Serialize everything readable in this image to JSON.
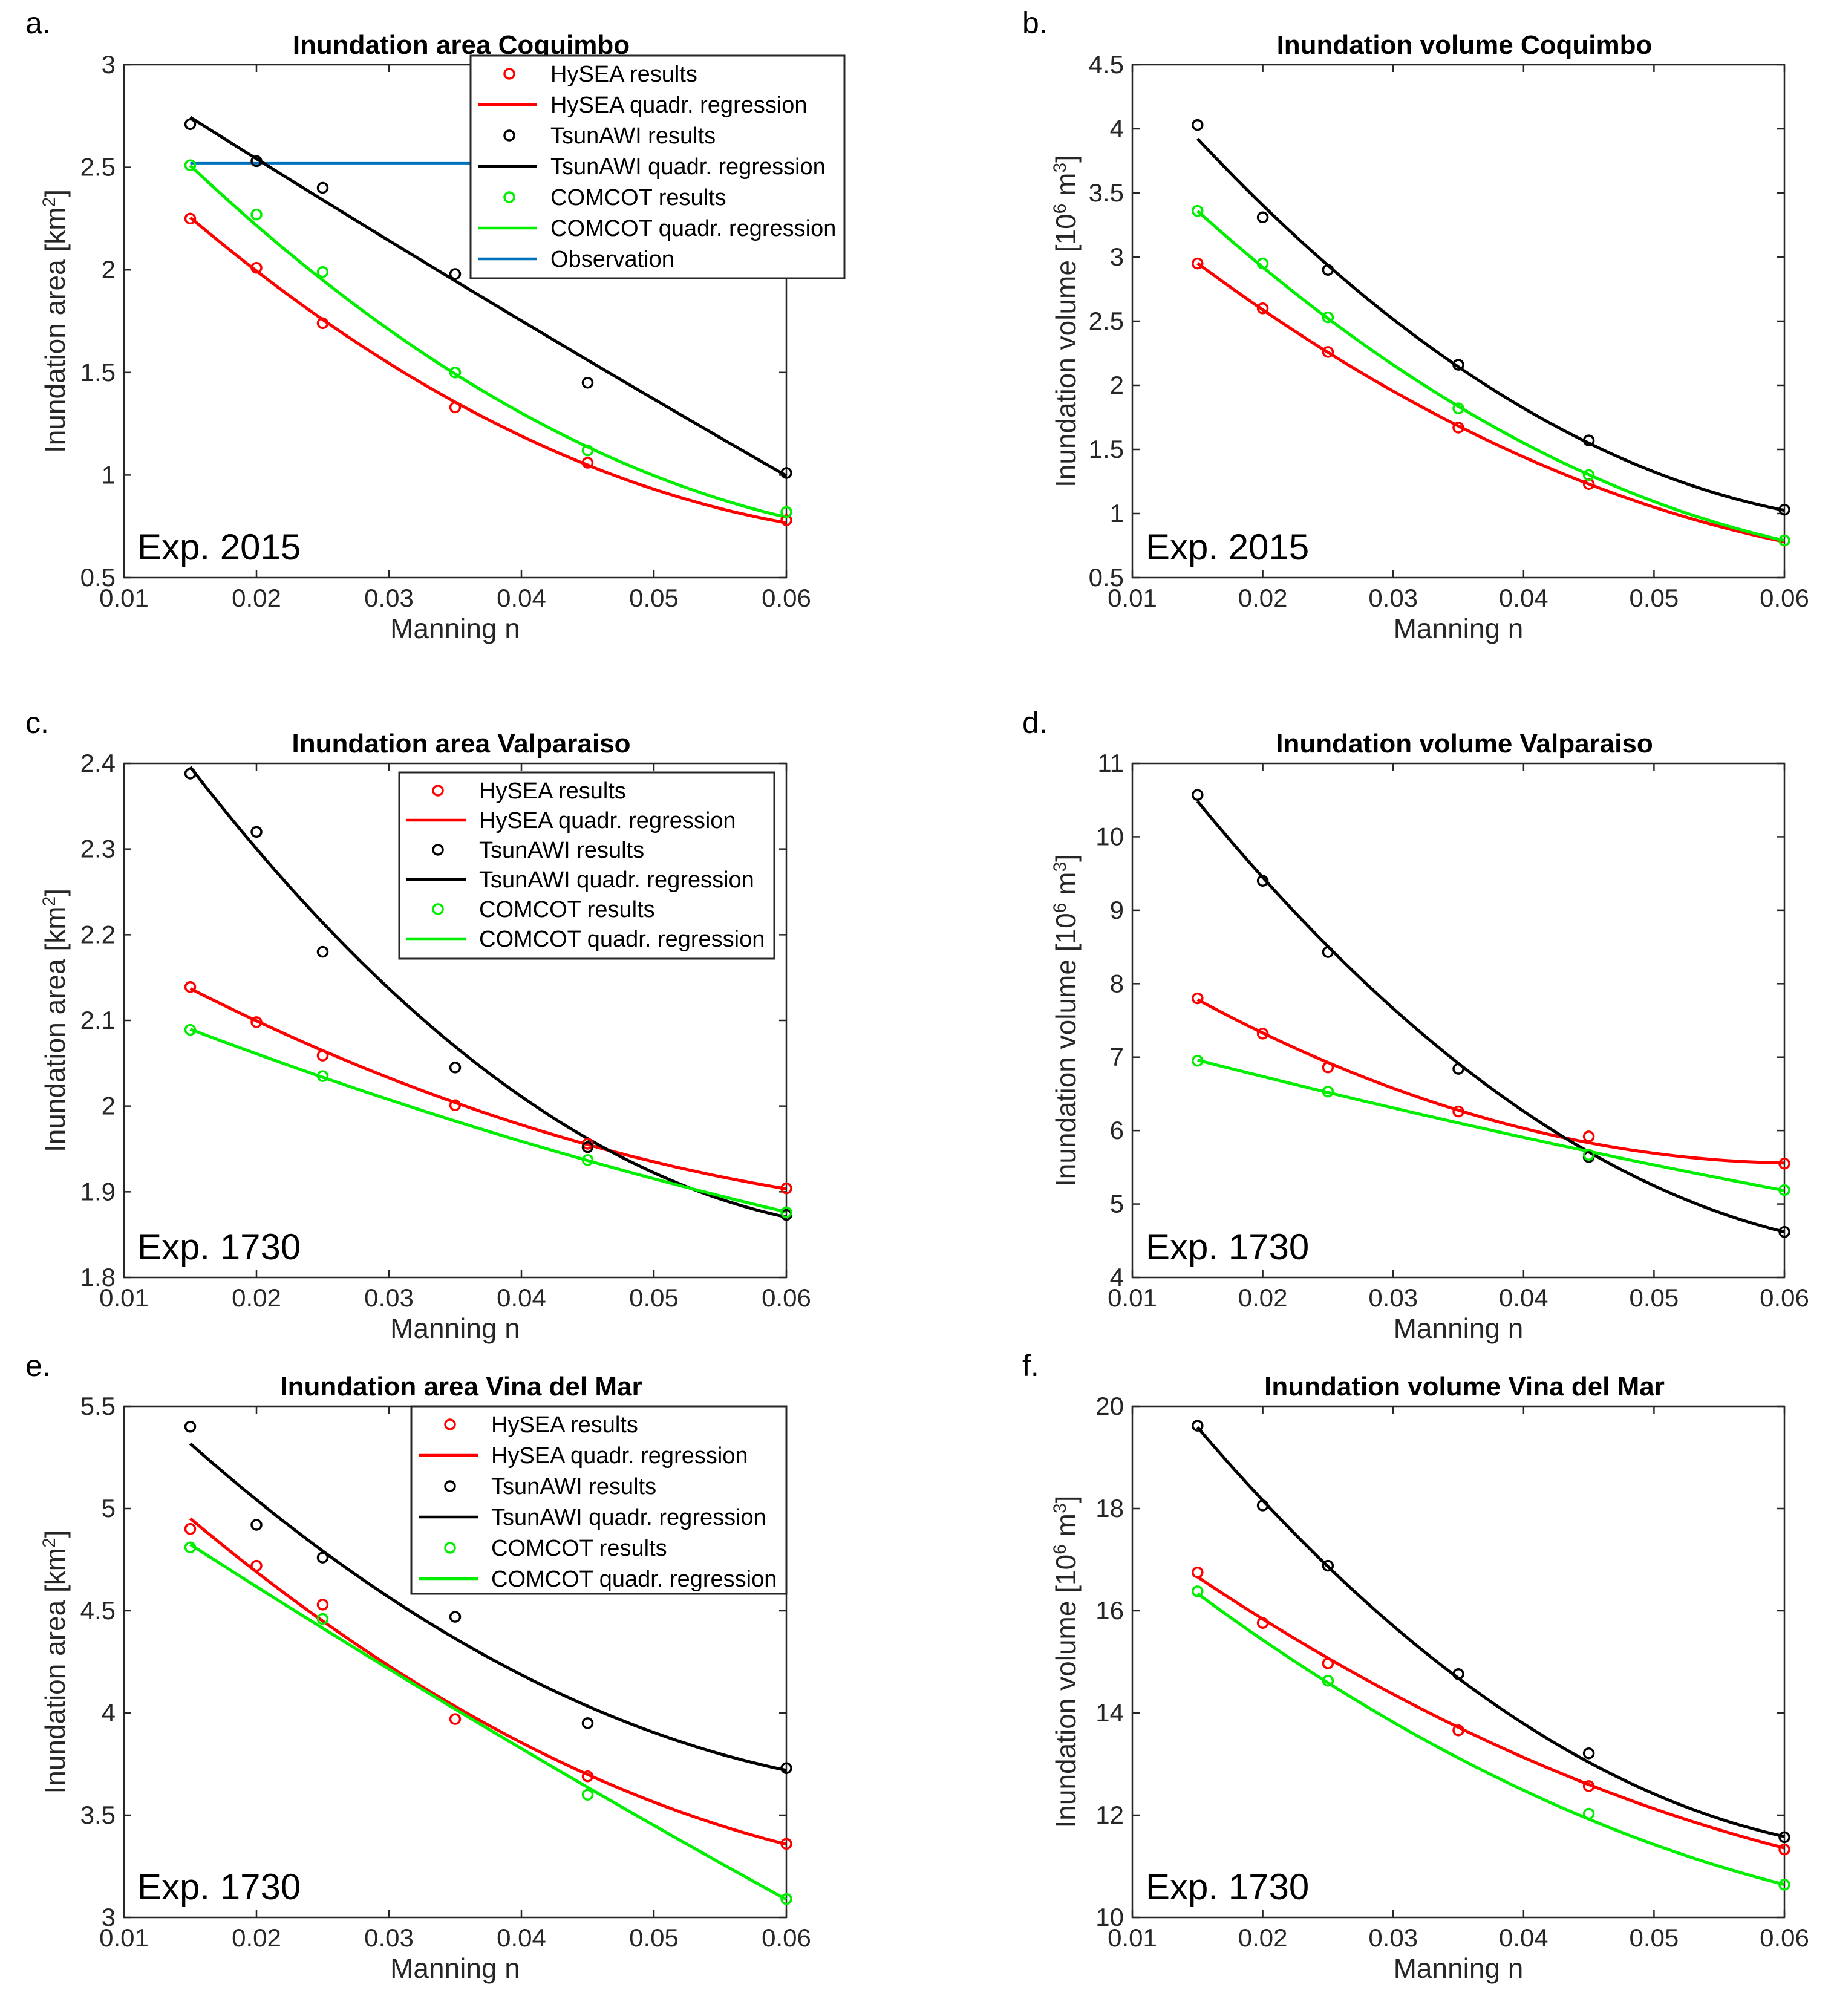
{
  "colors": {
    "hysea": "#ff0000",
    "tsunawi": "#000000",
    "comcot": "#00ee00",
    "observation": "#0072bd",
    "axis": "#262626"
  },
  "legend_labels": {
    "hysea_results": "HySEA results",
    "hysea_fit": "HySEA quadr. regression",
    "tsunawi_results": "TsunAWI results",
    "tsunawi_fit": "TsunAWI quadr. regression",
    "comcot_results": "COMCOT results",
    "comcot_fit": "COMCOT quadr. regression",
    "observation": "Observation"
  },
  "chart_data": [
    {
      "panel": "a.",
      "type": "scatter",
      "title": "Inundation area Coquimbo",
      "xlabel": "Manning n",
      "ylabel": "Inundation area [km²]",
      "xlim": [
        0.01,
        0.06
      ],
      "ylim": [
        0.5,
        3
      ],
      "xticks": [
        0.01,
        0.02,
        0.03,
        0.04,
        0.05,
        0.06
      ],
      "xtick_labels": [
        "0.01",
        "0.02",
        "0.03",
        "0.04",
        "0.05",
        "0.06"
      ],
      "yticks": [
        0.5,
        1,
        1.5,
        2,
        2.5,
        3
      ],
      "ytick_labels": [
        "0.5",
        "1",
        "1.5",
        "2",
        "2.5",
        "3"
      ],
      "annotation": "Exp. 2015",
      "legend_position": "top-right",
      "x": [
        0.015,
        0.02,
        0.025,
        0.035,
        0.045,
        0.06
      ],
      "series": [
        {
          "name": "HySEA",
          "results": [
            2.25,
            2.01,
            1.74,
            1.33,
            1.06,
            0.78
          ],
          "fit": [
            2.25,
            2.0,
            1.76,
            1.36,
            1.04,
            0.77
          ]
        },
        {
          "name": "TsunAWI",
          "results": [
            2.71,
            2.53,
            2.4,
            1.98,
            1.45,
            1.01
          ],
          "fit": [
            2.74,
            2.54,
            2.35,
            1.95,
            1.55,
            1.0
          ]
        },
        {
          "name": "COMCOT",
          "results": [
            2.51,
            2.27,
            1.99,
            1.5,
            1.12,
            0.82
          ],
          "fit": [
            2.5,
            2.22,
            1.96,
            1.5,
            1.12,
            0.8
          ]
        }
      ],
      "observation": {
        "name": "Observation",
        "value": 2.52,
        "x_range": [
          0.015,
          0.06
        ]
      }
    },
    {
      "panel": "b.",
      "type": "scatter",
      "title": "Inundation volume Coquimbo",
      "xlabel": "Manning n",
      "ylabel": "Inundation volume [10⁶ m³]",
      "xlim": [
        0.01,
        0.06
      ],
      "ylim": [
        0.5,
        4.5
      ],
      "xticks": [
        0.01,
        0.02,
        0.03,
        0.04,
        0.05,
        0.06
      ],
      "xtick_labels": [
        "0.01",
        "0.02",
        "0.03",
        "0.04",
        "0.05",
        "0.06"
      ],
      "yticks": [
        0.5,
        1,
        1.5,
        2,
        2.5,
        3,
        3.5,
        4,
        4.5
      ],
      "ytick_labels": [
        "0.5",
        "1",
        "1.5",
        "2",
        "2.5",
        "3",
        "3.5",
        "4",
        "4.5"
      ],
      "annotation": "Exp. 2015",
      "legend_position": "none",
      "x": [
        0.015,
        0.02,
        0.025,
        0.035,
        0.045,
        0.06
      ],
      "series": [
        {
          "name": "HySEA",
          "results": [
            2.95,
            2.6,
            2.26,
            1.67,
            1.23,
            0.79
          ],
          "fit": [
            2.95,
            2.59,
            2.26,
            1.68,
            1.23,
            0.78
          ]
        },
        {
          "name": "TsunAWI",
          "results": [
            4.03,
            3.31,
            2.9,
            2.16,
            1.57,
            1.03
          ],
          "fit": [
            3.94,
            3.39,
            2.92,
            2.15,
            1.56,
            1.02
          ]
        },
        {
          "name": "COMCOT",
          "results": [
            3.36,
            2.95,
            2.53,
            1.82,
            1.3,
            0.79
          ],
          "fit": [
            3.36,
            2.92,
            2.52,
            1.84,
            1.3,
            0.79
          ]
        }
      ]
    },
    {
      "panel": "c.",
      "type": "scatter",
      "title": "Inundation area Valparaiso",
      "xlabel": "Manning n",
      "ylabel": "Inundation area [km²]",
      "xlim": [
        0.01,
        0.06
      ],
      "ylim": [
        1.8,
        2.4
      ],
      "xticks": [
        0.01,
        0.02,
        0.03,
        0.04,
        0.05,
        0.06
      ],
      "xtick_labels": [
        "0.01",
        "0.02",
        "0.03",
        "0.04",
        "0.05",
        "0.06"
      ],
      "yticks": [
        1.8,
        1.9,
        2.0,
        2.1,
        2.2,
        2.3,
        2.4
      ],
      "ytick_labels": [
        "1.8",
        "1.9",
        "2",
        "2.1",
        "2.2",
        "2.3",
        "2.4"
      ],
      "annotation": "Exp. 1730",
      "legend_position": "top-right",
      "x": [
        0.015,
        0.02,
        0.025,
        0.035,
        0.045,
        0.06
      ],
      "series": [
        {
          "name": "HySEA",
          "results": [
            2.139,
            2.098,
            2.059,
            2.001,
            1.956,
            1.904
          ],
          "fit": [
            2.137,
            2.099,
            2.065,
            2.006,
            1.953,
            1.904
          ]
        },
        {
          "name": "TsunAWI",
          "results": [
            2.388,
            2.32,
            2.18,
            2.045,
            1.952,
            1.873
          ],
          "fit": [
            2.394,
            2.3,
            2.217,
            2.072,
            1.957,
            1.872
          ]
        },
        {
          "name": "COMCOT",
          "results": [
            2.089,
            null,
            2.035,
            null,
            1.937,
            1.876
          ],
          "fit": [
            2.089,
            2.061,
            2.035,
            1.983,
            1.935,
            1.877
          ]
        }
      ]
    },
    {
      "panel": "d.",
      "type": "scatter",
      "title": "Inundation volume Valparaiso",
      "xlabel": "Manning n",
      "ylabel": "Inundation volume [10⁶ m³]",
      "xlim": [
        0.01,
        0.06
      ],
      "ylim": [
        4,
        11
      ],
      "xticks": [
        0.01,
        0.02,
        0.03,
        0.04,
        0.05,
        0.06
      ],
      "xtick_labels": [
        "0.01",
        "0.02",
        "0.03",
        "0.04",
        "0.05",
        "0.06"
      ],
      "yticks": [
        4,
        5,
        6,
        7,
        8,
        9,
        10,
        11
      ],
      "ytick_labels": [
        "4",
        "5",
        "6",
        "7",
        "8",
        "9",
        "10",
        "11"
      ],
      "annotation": "Exp. 1730",
      "legend_position": "none",
      "x": [
        0.015,
        0.02,
        0.025,
        0.035,
        0.045,
        0.06
      ],
      "series": [
        {
          "name": "HySEA",
          "results": [
            7.8,
            7.32,
            6.86,
            6.26,
            5.92,
            5.55
          ],
          "fit": [
            7.8,
            7.32,
            6.91,
            6.27,
            5.86,
            5.55
          ]
        },
        {
          "name": "TsunAWI",
          "results": [
            10.57,
            9.4,
            8.43,
            6.84,
            5.64,
            4.62
          ],
          "fit": [
            10.48,
            9.45,
            8.51,
            6.91,
            5.71,
            4.62
          ]
        },
        {
          "name": "COMCOT",
          "results": [
            6.95,
            null,
            6.53,
            null,
            5.67,
            5.19
          ],
          "fit": [
            6.95,
            6.74,
            6.53,
            6.11,
            5.7,
            5.19
          ]
        }
      ]
    },
    {
      "panel": "e.",
      "type": "scatter",
      "title": "Inundation area Vina del Mar",
      "xlabel": "Manning n",
      "ylabel": "Inundation area [km²]",
      "xlim": [
        0.01,
        0.06
      ],
      "ylim": [
        3,
        5.5
      ],
      "xticks": [
        0.01,
        0.02,
        0.03,
        0.04,
        0.05,
        0.06
      ],
      "xtick_labels": [
        "0.01",
        "0.02",
        "0.03",
        "0.04",
        "0.05",
        "0.06"
      ],
      "yticks": [
        3,
        3.5,
        4,
        4.5,
        5,
        5.5
      ],
      "ytick_labels": [
        "3",
        "3.5",
        "4",
        "4.5",
        "5",
        "5.5"
      ],
      "annotation": "Exp. 1730",
      "legend_position": "top-right",
      "x": [
        0.015,
        0.02,
        0.025,
        0.035,
        0.045,
        0.06
      ],
      "series": [
        {
          "name": "HySEA",
          "results": [
            4.9,
            4.72,
            4.53,
            3.97,
            3.69,
            3.36
          ],
          "fit": [
            4.95,
            4.69,
            4.45,
            4.04,
            3.69,
            3.36
          ]
        },
        {
          "name": "TsunAWI",
          "results": [
            5.4,
            4.92,
            4.76,
            4.47,
            3.95,
            3.73
          ],
          "fit": [
            5.32,
            5.04,
            4.79,
            4.37,
            4.03,
            3.72
          ]
        },
        {
          "name": "COMCOT",
          "results": [
            4.81,
            null,
            4.46,
            null,
            3.6,
            3.09
          ],
          "fit": [
            4.82,
            4.62,
            4.42,
            4.02,
            3.63,
            3.09
          ]
        }
      ]
    },
    {
      "panel": "f.",
      "type": "scatter",
      "title": "Inundation volume Vina del Mar",
      "xlabel": "Manning n",
      "ylabel": "Inundation volume [10⁶ m³]",
      "xlim": [
        0.01,
        0.06
      ],
      "ylim": [
        10,
        20
      ],
      "xticks": [
        0.01,
        0.02,
        0.03,
        0.04,
        0.05,
        0.06
      ],
      "xtick_labels": [
        "0.01",
        "0.02",
        "0.03",
        "0.04",
        "0.05",
        "0.06"
      ],
      "yticks": [
        10,
        12,
        14,
        16,
        18,
        20
      ],
      "ytick_labels": [
        "10",
        "12",
        "14",
        "16",
        "18",
        "20"
      ],
      "annotation": "Exp. 1730",
      "legend_position": "none",
      "x": [
        0.015,
        0.02,
        0.025,
        0.035,
        0.045,
        0.06
      ],
      "series": [
        {
          "name": "HySEA",
          "results": [
            16.75,
            15.76,
            14.97,
            13.66,
            12.57,
            11.33
          ],
          "fit": [
            16.68,
            15.83,
            15.05,
            13.72,
            12.62,
            11.35
          ]
        },
        {
          "name": "TsunAWI",
          "results": [
            19.62,
            18.06,
            16.88,
            14.76,
            13.21,
            11.57
          ],
          "fit": [
            19.6,
            18.15,
            16.85,
            14.69,
            13.04,
            11.58
          ]
        },
        {
          "name": "COMCOT",
          "results": [
            16.38,
            null,
            14.63,
            null,
            12.03,
            10.64
          ],
          "fit": [
            16.34,
            15.43,
            14.58,
            13.12,
            11.93,
            10.64
          ]
        }
      ]
    }
  ]
}
